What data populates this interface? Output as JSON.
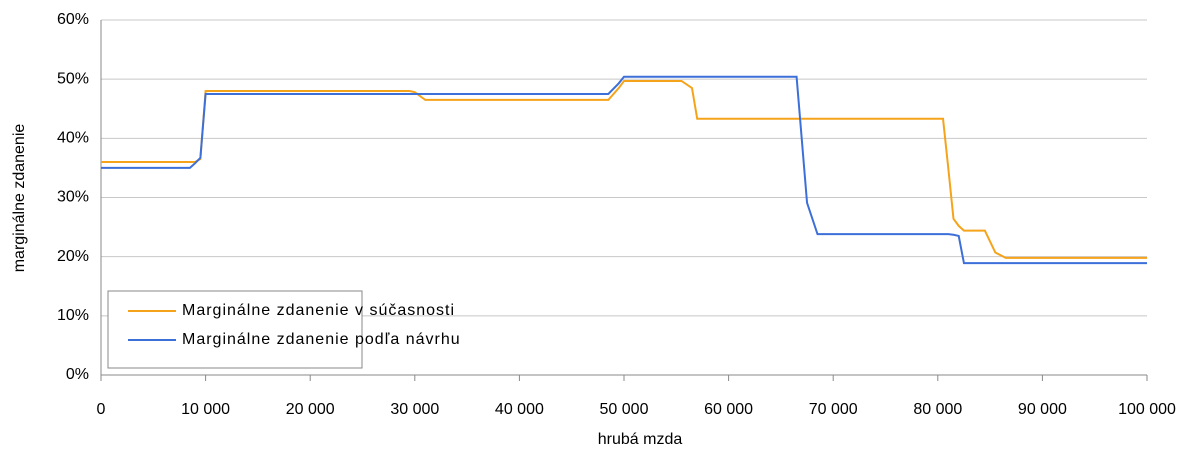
{
  "chart_data": {
    "type": "line",
    "x_label": "hrubá mzda",
    "y_label": "marginálne zdanenie",
    "x": [
      0,
      8500,
      9000,
      9500,
      10000,
      29500,
      30000,
      31000,
      48500,
      49500,
      50000,
      55500,
      56500,
      57000,
      66500,
      67500,
      68500,
      80500,
      81000,
      81500,
      82000,
      82500,
      84500,
      85500,
      86500,
      100000
    ],
    "series": [
      {
        "name": "Marginálne zdanenie v súčasnosti",
        "color": "#f5a31a",
        "values": [
          36,
          36,
          36,
          36.5,
          48,
          48,
          47.8,
          46.5,
          46.5,
          48.5,
          49.7,
          49.7,
          48.5,
          43.3,
          43.3,
          43.3,
          43.3,
          43.3,
          35,
          26.4,
          25.2,
          24.4,
          24.4,
          20.7,
          19.8,
          19.8
        ]
      },
      {
        "name": "Marginálne zdanenie podľa návrhu",
        "color": "#3d6fd9",
        "values": [
          35,
          35,
          35.8,
          36.7,
          47.5,
          47.5,
          47.5,
          47.5,
          47.5,
          49.3,
          50.4,
          50.4,
          50.4,
          50.4,
          50.4,
          29.1,
          23.8,
          23.8,
          23.8,
          23.7,
          23.5,
          18.9,
          18.9,
          18.9,
          18.9,
          18.9
        ]
      }
    ],
    "xlim": [
      0,
      100000
    ],
    "xticks": [
      0,
      {
        "value": 10000,
        "label": "10 000"
      },
      {
        "value": 20000,
        "label": "20 000"
      },
      {
        "value": 30000,
        "label": "30 000"
      },
      {
        "value": 40000,
        "label": "40 000"
      },
      {
        "value": 50000,
        "label": "50 000"
      },
      {
        "value": 60000,
        "label": "60 000"
      },
      {
        "value": 70000,
        "label": "70 000"
      },
      {
        "value": 80000,
        "label": "80 000"
      },
      {
        "value": 90000,
        "label": "90 000"
      },
      {
        "value": 100000,
        "label": "100 000"
      }
    ],
    "ylim": [
      0,
      60
    ],
    "yticks": [
      {
        "value": 0,
        "label": "0%"
      },
      {
        "value": 10,
        "label": "10%"
      },
      {
        "value": 20,
        "label": "20%"
      },
      {
        "value": 30,
        "label": "30%"
      },
      {
        "value": 40,
        "label": "40%"
      },
      {
        "value": 50,
        "label": "50%"
      },
      {
        "value": 60,
        "label": "60%"
      }
    ],
    "grid": true,
    "legend": "lower left"
  }
}
